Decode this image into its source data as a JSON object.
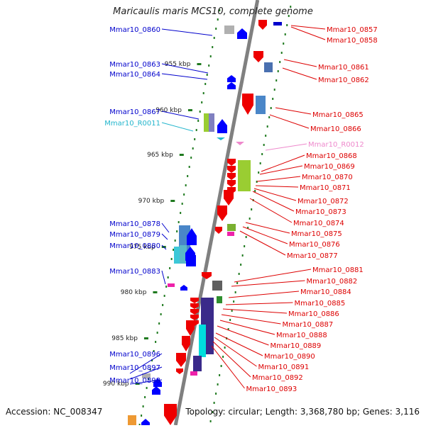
{
  "title": "Maricaulis maris MCS10, complete genome",
  "footer": {
    "accession": "Accession: NC_008347",
    "topology": "Topology: circular; Length: 3,368,780 bp; Genes: 3,116"
  },
  "colors": {
    "backbone": "#808080",
    "track_dots": "#1f7a1f",
    "left_labels": "#0000cc",
    "right_labels": "#dd0000",
    "rna_left": "#22b5cc",
    "rna_right": "#ee88cc",
    "forward_genes": "#0000ff",
    "reverse_genes": "#ee0000"
  },
  "ticks": [
    "955 kbp",
    "960 kbp",
    "965 kbp",
    "970 kbp",
    "975 kbp",
    "980 kbp",
    "985 kbp",
    "990 kbp"
  ],
  "left_genes": [
    {
      "name": "Mmar10_0860",
      "type": "gene"
    },
    {
      "name": "Mmar10_0863",
      "type": "gene"
    },
    {
      "name": "Mmar10_0864",
      "type": "gene"
    },
    {
      "name": "Mmar10_0867",
      "type": "gene"
    },
    {
      "name": "Mmar10_R0011",
      "type": "rna"
    },
    {
      "name": "Mmar10_0878",
      "type": "gene"
    },
    {
      "name": "Mmar10_0879",
      "type": "gene"
    },
    {
      "name": "Mmar10_0880",
      "type": "gene"
    },
    {
      "name": "Mmar10_0883",
      "type": "gene"
    },
    {
      "name": "Mmar10_0896",
      "type": "gene"
    },
    {
      "name": "Mmar10_0897",
      "type": "gene"
    },
    {
      "name": "Mmar10_0898",
      "type": "gene"
    }
  ],
  "right_genes": [
    {
      "name": "Mmar10_0857",
      "type": "gene"
    },
    {
      "name": "Mmar10_0858",
      "type": "gene"
    },
    {
      "name": "Mmar10_0861",
      "type": "gene"
    },
    {
      "name": "Mmar10_0862",
      "type": "gene"
    },
    {
      "name": "Mmar10_0865",
      "type": "gene"
    },
    {
      "name": "Mmar10_0866",
      "type": "gene"
    },
    {
      "name": "Mmar10_R0012",
      "type": "rna"
    },
    {
      "name": "Mmar10_0868",
      "type": "gene"
    },
    {
      "name": "Mmar10_0869",
      "type": "gene"
    },
    {
      "name": "Mmar10_0870",
      "type": "gene"
    },
    {
      "name": "Mmar10_0871",
      "type": "gene"
    },
    {
      "name": "Mmar10_0872",
      "type": "gene"
    },
    {
      "name": "Mmar10_0873",
      "type": "gene"
    },
    {
      "name": "Mmar10_0874",
      "type": "gene"
    },
    {
      "name": "Mmar10_0875",
      "type": "gene"
    },
    {
      "name": "Mmar10_0876",
      "type": "gene"
    },
    {
      "name": "Mmar10_0877",
      "type": "gene"
    },
    {
      "name": "Mmar10_0881",
      "type": "gene"
    },
    {
      "name": "Mmar10_0882",
      "type": "gene"
    },
    {
      "name": "Mmar10_0884",
      "type": "gene"
    },
    {
      "name": "Mmar10_0885",
      "type": "gene"
    },
    {
      "name": "Mmar10_0886",
      "type": "gene"
    },
    {
      "name": "Mmar10_0887",
      "type": "gene"
    },
    {
      "name": "Mmar10_0888",
      "type": "gene"
    },
    {
      "name": "Mmar10_0889",
      "type": "gene"
    },
    {
      "name": "Mmar10_0890",
      "type": "gene"
    },
    {
      "name": "Mmar10_0891",
      "type": "gene"
    },
    {
      "name": "Mmar10_0892",
      "type": "gene"
    },
    {
      "name": "Mmar10_0893",
      "type": "gene"
    }
  ]
}
